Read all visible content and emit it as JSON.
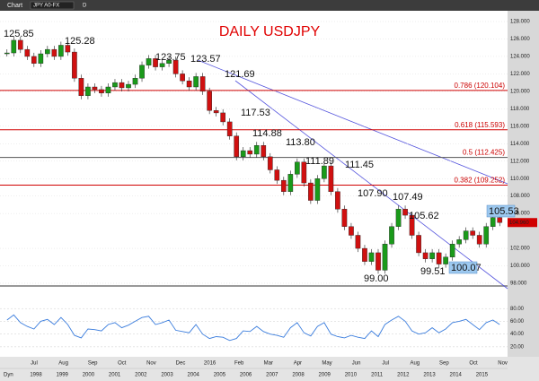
{
  "toolbar": {
    "tab": "Chart",
    "symbol": "JPY A0-FX",
    "period": "D",
    "footer": "Dyn"
  },
  "title": "DAILY USDJPY",
  "price": {
    "ylim": [
      98,
      128
    ],
    "yticks": [
      {
        "value": 128,
        "label": "128.000"
      },
      {
        "value": 126,
        "label": "126.000"
      },
      {
        "value": 124,
        "label": "124.000"
      },
      {
        "value": 122,
        "label": "122.000"
      },
      {
        "value": 120,
        "label": "120.000"
      },
      {
        "value": 118,
        "label": "118.000"
      },
      {
        "value": 116,
        "label": "116.000"
      },
      {
        "value": 114,
        "label": "114.000"
      },
      {
        "value": 112,
        "label": "112.000"
      },
      {
        "value": 110,
        "label": "110.000"
      },
      {
        "value": 108,
        "label": "108.000"
      },
      {
        "value": 106,
        "label": "106.000"
      },
      {
        "value": 102,
        "label": "102.000"
      },
      {
        "value": 100,
        "label": "100.000"
      },
      {
        "value": 98,
        "label": "98.000"
      }
    ],
    "closes": [
      124.4,
      125.85,
      124.8,
      124.0,
      123.2,
      124.3,
      124.8,
      124.0,
      125.28,
      124.5,
      121.5,
      119.5,
      120.5,
      120.2,
      119.8,
      120.5,
      121.0,
      120.4,
      120.8,
      121.5,
      123.0,
      123.75,
      122.8,
      123.2,
      123.57,
      122.0,
      121.2,
      120.5,
      121.69,
      120.0,
      117.8,
      117.53,
      116.5,
      114.88,
      112.5,
      113.2,
      112.8,
      113.8,
      112.5,
      111.0,
      109.8,
      108.5,
      110.5,
      111.89,
      109.5,
      107.5,
      110.0,
      111.45,
      108.5,
      106.5,
      104.5,
      103.5,
      102.0,
      100.5,
      101.5,
      99.5,
      102.5,
      104.5,
      106.5,
      105.8,
      103.5,
      101.5,
      100.8,
      101.5,
      100.2,
      101.0,
      102.5,
      103.0,
      104.0,
      103.5,
      102.5,
      104.5,
      105.53,
      104.96
    ],
    "fib_levels": [
      {
        "value": 120.104,
        "label": "0.786 (120.104)"
      },
      {
        "value": 115.593,
        "label": "0.618 (115.593)"
      },
      {
        "value": 112.425,
        "label": "0.5 (112.425)"
      },
      {
        "value": 109.252,
        "label": "0.382 (109.252)"
      }
    ],
    "last": {
      "value": 104.96,
      "label": "104.960"
    },
    "annotations": [
      "125.85",
      "125.28",
      "123.75",
      "123.57",
      "121.69",
      "117.53",
      "114.88",
      "113.80",
      "111.89",
      "111.45",
      "107.90",
      "107.49",
      "105.62",
      "99.00",
      "99.51",
      "100.07",
      "105.53"
    ]
  },
  "rsi": {
    "ylim": [
      10,
      100
    ],
    "yticks": [
      {
        "value": 80,
        "label": "80.00"
      },
      {
        "value": 60,
        "label": "60.00"
      },
      {
        "value": 40,
        "label": "40.00"
      },
      {
        "value": 20,
        "label": "20.00"
      }
    ],
    "values": [
      62,
      70,
      58,
      52,
      48,
      60,
      63,
      55,
      66,
      55,
      38,
      34,
      48,
      47,
      45,
      55,
      58,
      50,
      54,
      60,
      66,
      68,
      55,
      58,
      62,
      46,
      44,
      42,
      55,
      40,
      33,
      36,
      35,
      30,
      33,
      45,
      44,
      52,
      44,
      40,
      38,
      35,
      50,
      58,
      42,
      37,
      52,
      58,
      40,
      36,
      34,
      38,
      35,
      33,
      45,
      36,
      55,
      62,
      68,
      60,
      45,
      40,
      42,
      50,
      42,
      48,
      58,
      60,
      63,
      55,
      47,
      58,
      62,
      55
    ]
  },
  "x_months": [
    "Jul",
    "Aug",
    "Sep",
    "Oct",
    "Nov",
    "Dec",
    "2016",
    "Feb",
    "Mar",
    "Apr",
    "May",
    "Jun",
    "Jul",
    "Aug",
    "Sep",
    "Oct",
    "Nov"
  ],
  "x_years": [
    "1998",
    "1999",
    "2000",
    "2001",
    "2002",
    "2003",
    "2004",
    "2005",
    "2006",
    "2007",
    "2008",
    "2009",
    "2010",
    "2011",
    "2012",
    "2013",
    "2014",
    "2015"
  ]
}
